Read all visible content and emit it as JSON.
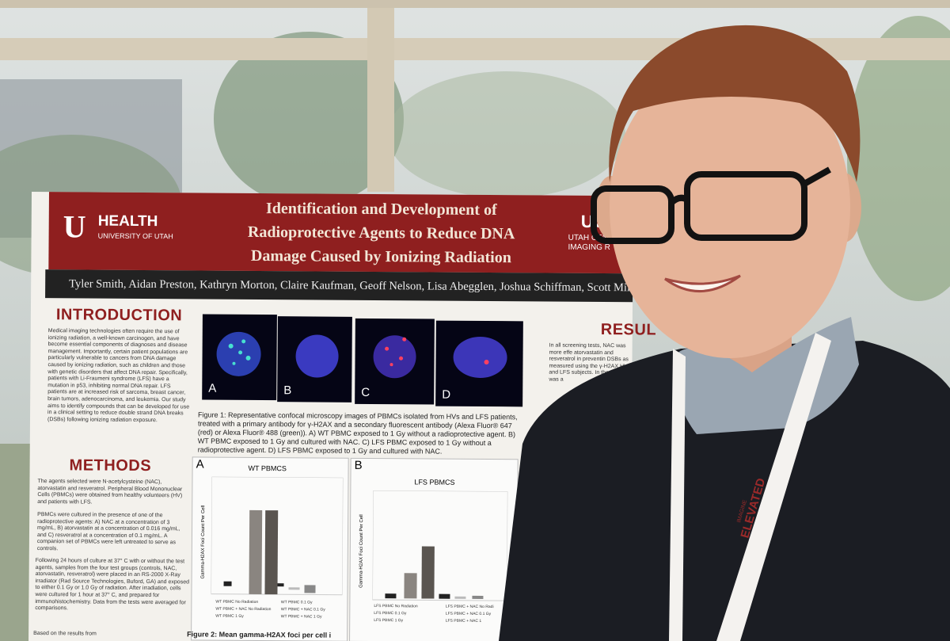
{
  "poster": {
    "logo": {
      "mark": "U",
      "name": "HEALTH",
      "sub": "UNIVERSITY OF UTAH"
    },
    "title": [
      "Identification and Development of",
      "Radioprotective Agents to Reduce DNA",
      "Damage Caused by Ionizing Radiation"
    ],
    "right_logo": {
      "name": "UC",
      "sub": "UTAH CENTER",
      "sub2": "IMAGING R"
    },
    "authors": "Tyler Smith, Aidan Preston, Kathryn Morton, Claire Kaufman, Geoff Nelson, Lisa Abegglen, Joshua Schiffman, Scott Miller, C",
    "introduction": {
      "heading": "INTRODUCTION",
      "body": "Medical imaging technologies often require the use of ionizing radiation, a well-known carcinogen, and have become essential components of diagnoses and disease management. Importantly, certain patient populations are particularly vulnerable to cancers from DNA damage caused by ionizing radiation, such as children and those with genetic disorders that affect DNA repair. Specifically, patients with Li-Fraumeni syndrome (LFS) have a mutation in p53, inhibiting normal DNA repair. LFS patients are at increased risk of sarcoma, breast cancer, brain tumors, adenocarcinoma, and leukemia. Our study aims to identify compounds that can be developed for use in a clinical setting to reduce double strand DNA breaks (DSBs) following ionizing radiation exposure."
    },
    "methods": {
      "heading": "METHODS",
      "body": [
        "The agents selected were N-acetylcysteine (NAC), atorvastatin and resveratrol. Peripheral Blood Mononuclear Cells (PBMCs) were obtained from healthy volunteers (HV) and patients with LFS.",
        "PBMCs were cultured in the presence of one of the radioprotective agents: A) NAC at a concentration of 3 mg/mL, B) atorvastatin at a concentration of 0.016 mg/mL, and C) resveratrol at a concentration of 0.1 mg/mL. A companion set of PBMCs were left untreated to serve as controls.",
        "Following 24 hours of culture at 37° C with or without the test agents, samples from the four test groups (controls, NAC, atorvastatin, resveratrol) were placed in an RS-2000 X-Ray irradiator (Rad Source Technologies, Buford, GA) and exposed to either 0.1 Gy or 1.0 Gy of radiation. After irradiation, cells were cultured for 1 hour at 37° C, and prepared for immunohistochemistry. Data from the tests were averaged for comparisons.",
        "Based on the results from"
      ]
    },
    "results": {
      "heading": "RESUL",
      "body": "In all screening tests, NAC was more effe atorvastatin and resveratrol in preventin DSBs as measured using the γ-H2AX HV and LFS subjects. In the number was a"
    },
    "figure1": {
      "panels": [
        "A",
        "B",
        "C",
        "D"
      ],
      "caption": "Figure 1: Representative confocal microscopy images of PBMCs isolated from HVs and LFS patients, treated with a primary antibody for γ-H2AX and a secondary fluorescent antibody (Alexa Fluor® 647 (red) or Alexa Fluor® 488 (green)). A) WT PBMC exposed to 1 Gy without a radioprotective agent. B) WT PBMC exposed to 1 Gy and cultured with NAC. C) LFS PBMC exposed to 1 Gy without a radioprotective agent. D) LFS PBMC exposed to 1 Gy and cultured with NAC."
    },
    "figure2": {
      "panels": [
        {
          "letter": "A",
          "title": "WT PBMCS",
          "legend": [
            "WT PBMC No Radiation",
            "WT PBMC + NAC No Radiation",
            "WT PBMC 1 Gy",
            "WT PBMC 0.1 Gy",
            "WT PBMC + NAC 0.1 Gy",
            "WT PBMC + NAC 1 Gy"
          ]
        },
        {
          "letter": "B",
          "title": "LFS PBMCS",
          "legend": [
            "LFS PBMC No Radiation",
            "LFS PBMC 0.1 Gy",
            "LFS PBMC 1 Gy",
            "LFS PBMC + NAC No Radi",
            "LFS PBMC + NAC 0.1 Gy",
            "LFS PBMC + NAC 1"
          ]
        }
      ],
      "y_label": "Gamma-H2AX Foci Count Per Cell",
      "caption": "Figure 2: Mean gamma-H2AX foci per cell i"
    }
  },
  "lanyard": {
    "text": "ELEVATED",
    "sub": "IMAGINE"
  }
}
